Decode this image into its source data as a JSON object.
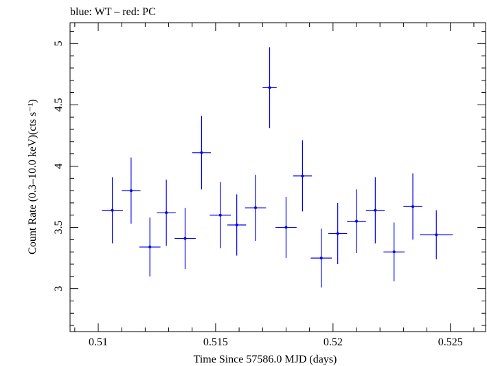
{
  "chart_data": {
    "type": "scatter",
    "title": "blue: WT – red: PC",
    "xlabel": "Time Since 57586.0 MJD (days)",
    "ylabel": "Count Rate (0.3–10.0 keV)(cts s⁻¹)",
    "xlim": [
      0.5088,
      0.5265
    ],
    "ylim": [
      2.65,
      5.17
    ],
    "xticks": [
      0.51,
      0.515,
      0.52,
      0.525
    ],
    "xtick_labels": [
      "0.51",
      "0.515",
      "0.52",
      "0.525"
    ],
    "yticks": [
      3,
      3.5,
      4,
      4.5,
      5
    ],
    "ytick_labels": [
      "3",
      "3.5",
      "4",
      "4.5",
      "5"
    ],
    "grid": false,
    "series": [
      {
        "name": "WT",
        "color": "#0000ee",
        "points": [
          {
            "x": 0.5106,
            "y": 3.64,
            "xerr": 0.00045,
            "yerr": 0.27
          },
          {
            "x": 0.5114,
            "y": 3.8,
            "xerr": 0.0004,
            "yerr": 0.27
          },
          {
            "x": 0.5122,
            "y": 3.34,
            "xerr": 0.00045,
            "yerr": 0.24
          },
          {
            "x": 0.5129,
            "y": 3.62,
            "xerr": 0.0004,
            "yerr": 0.27
          },
          {
            "x": 0.5137,
            "y": 3.41,
            "xerr": 0.00045,
            "yerr": 0.25
          },
          {
            "x": 0.5144,
            "y": 4.11,
            "xerr": 0.0004,
            "yerr": 0.3
          },
          {
            "x": 0.5152,
            "y": 3.6,
            "xerr": 0.00045,
            "yerr": 0.27
          },
          {
            "x": 0.5159,
            "y": 3.52,
            "xerr": 0.0004,
            "yerr": 0.25
          },
          {
            "x": 0.5167,
            "y": 3.66,
            "xerr": 0.00045,
            "yerr": 0.27
          },
          {
            "x": 0.5173,
            "y": 4.64,
            "xerr": 0.0003,
            "yerr": 0.33
          },
          {
            "x": 0.518,
            "y": 3.5,
            "xerr": 0.00045,
            "yerr": 0.25
          },
          {
            "x": 0.5187,
            "y": 3.92,
            "xerr": 0.0004,
            "yerr": 0.29
          },
          {
            "x": 0.5195,
            "y": 3.25,
            "xerr": 0.00045,
            "yerr": 0.24
          },
          {
            "x": 0.5202,
            "y": 3.45,
            "xerr": 0.0004,
            "yerr": 0.25
          },
          {
            "x": 0.521,
            "y": 3.55,
            "xerr": 0.0004,
            "yerr": 0.26
          },
          {
            "x": 0.5218,
            "y": 3.64,
            "xerr": 0.0004,
            "yerr": 0.27
          },
          {
            "x": 0.5226,
            "y": 3.3,
            "xerr": 0.00045,
            "yerr": 0.24
          },
          {
            "x": 0.5234,
            "y": 3.67,
            "xerr": 0.0004,
            "yerr": 0.27
          },
          {
            "x": 0.5244,
            "y": 3.44,
            "xerr": 0.0007,
            "yerr": 0.2
          }
        ]
      }
    ]
  }
}
